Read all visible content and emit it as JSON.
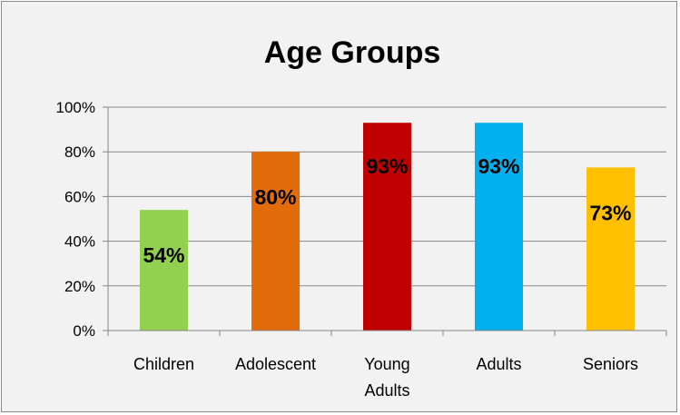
{
  "chart_data": {
    "type": "bar",
    "title": "Age Groups",
    "categories": [
      [
        "Children"
      ],
      [
        "Adolescent"
      ],
      [
        "Young",
        "Adults"
      ],
      [
        "Adults"
      ],
      [
        "Seniors"
      ]
    ],
    "values": [
      54,
      80,
      93,
      93,
      73
    ],
    "data_labels": [
      "54%",
      "80%",
      "93%",
      "93%",
      "73%"
    ],
    "colors": [
      "#92d050",
      "#e26b0a",
      "#c00000",
      "#00b0f0",
      "#ffc000"
    ],
    "ylim": [
      0,
      100
    ],
    "yticks": [
      0,
      20,
      40,
      60,
      80,
      100
    ],
    "ytick_labels": [
      "0%",
      "20%",
      "40%",
      "60%",
      "80%",
      "100%"
    ],
    "grid": true,
    "legend": "none",
    "xlabel": "",
    "ylabel": ""
  }
}
